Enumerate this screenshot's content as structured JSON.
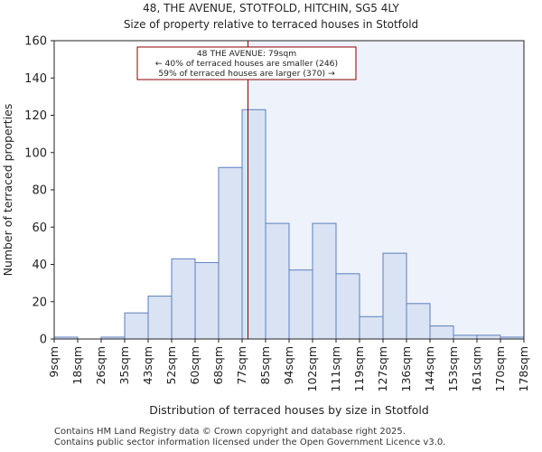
{
  "chart_data": {
    "type": "bar",
    "title_line1": "48, THE AVENUE, STOTFOLD, HITCHIN, SG5 4LY",
    "title_line2": "Size of property relative to terraced houses in Stotfold",
    "xlabel": "Distribution of terraced houses by size in Stotfold",
    "ylabel": "Number of terraced properties",
    "bin_edges": [
      9,
      18,
      26,
      35,
      43,
      52,
      60,
      68,
      77,
      85,
      94,
      102,
      111,
      119,
      127,
      136,
      144,
      153,
      161,
      170,
      178
    ],
    "tick_labels": [
      "9sqm",
      "18sqm",
      "26sqm",
      "35sqm",
      "43sqm",
      "52sqm",
      "60sqm",
      "68sqm",
      "77sqm",
      "85sqm",
      "94sqm",
      "102sqm",
      "111sqm",
      "119sqm",
      "127sqm",
      "136sqm",
      "144sqm",
      "153sqm",
      "161sqm",
      "170sqm",
      "178sqm"
    ],
    "values": [
      1,
      0,
      1,
      14,
      23,
      43,
      41,
      92,
      123,
      62,
      37,
      62,
      35,
      12,
      46,
      19,
      7,
      2,
      2,
      1
    ],
    "ylim": [
      0,
      160
    ],
    "yticks": [
      0,
      20,
      40,
      60,
      80,
      100,
      120,
      140,
      160
    ],
    "marker_value": 79,
    "annotation": {
      "line1": "48 THE AVENUE: 79sqm",
      "line2": "← 40% of terraced houses are smaller (246)",
      "line3": "59% of terraced houses are larger (370) →"
    },
    "colors": {
      "bar_fill": "#dae3f3",
      "bar_edge": "#5b7fbf",
      "marker": "#8b0000",
      "highlight_bg": "#eef2fa"
    }
  },
  "footer": {
    "line1": "Contains HM Land Registry data © Crown copyright and database right 2025.",
    "line2": "Contains public sector information licensed under the Open Government Licence v3.0."
  }
}
